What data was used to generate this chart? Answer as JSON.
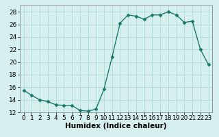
{
  "x": [
    0,
    1,
    2,
    3,
    4,
    5,
    6,
    7,
    8,
    9,
    10,
    11,
    12,
    13,
    14,
    15,
    16,
    17,
    18,
    19,
    20,
    21,
    22,
    23
  ],
  "y": [
    15.5,
    14.7,
    14.0,
    13.7,
    13.2,
    13.1,
    13.1,
    12.3,
    12.2,
    12.5,
    15.7,
    20.8,
    26.2,
    27.5,
    27.3,
    26.8,
    27.5,
    27.5,
    28.0,
    27.5,
    26.3,
    26.5,
    22.0,
    19.6
  ],
  "line_color": "#1a7a6a",
  "marker": "D",
  "markersize": 2.5,
  "linewidth": 1.0,
  "bg_color": "#d6f0f0",
  "grid_color": "#b0d8d8",
  "xlabel": "Humidex (Indice chaleur)",
  "ylim": [
    12,
    29
  ],
  "xlim": [
    -0.5,
    23.5
  ],
  "yticks": [
    12,
    14,
    16,
    18,
    20,
    22,
    24,
    26,
    28
  ],
  "xticks": [
    0,
    1,
    2,
    3,
    4,
    5,
    6,
    7,
    8,
    9,
    10,
    11,
    12,
    13,
    14,
    15,
    16,
    17,
    18,
    19,
    20,
    21,
    22,
    23
  ],
  "tick_fontsize": 6.5,
  "xlabel_fontsize": 7.5
}
